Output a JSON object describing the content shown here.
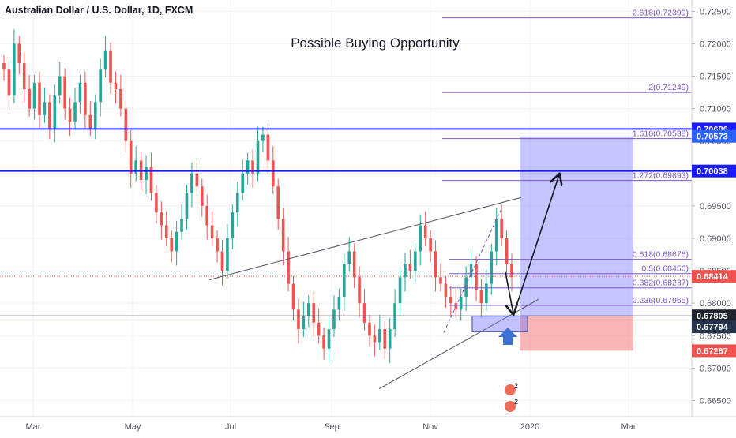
{
  "header": {
    "symbol_title": "Australian Dollar / U.S. Dollar, 1D, FXCM",
    "headline": "Possible Buying Opportunity"
  },
  "chart_data": {
    "type": "candlestick",
    "symbol": "Australian Dollar / U.S. Dollar",
    "interval": "1D",
    "source": "FXCM",
    "title": "Possible Buying Opportunity",
    "x_ticks": [
      "Mar",
      "May",
      "Jul",
      "Sep",
      "Nov",
      "2020",
      "Mar"
    ],
    "y_ticks": [
      "0.72500",
      "0.72000",
      "0.71500",
      "0.71000",
      "0.70500",
      "0.70000",
      "0.69500",
      "0.69000",
      "0.68500",
      "0.68000",
      "0.67500",
      "0.67000",
      "0.66500"
    ],
    "ylim": [
      0.6625,
      0.7265
    ],
    "price_tags": [
      {
        "label": "0.70686",
        "value": 0.70686,
        "color": "#1a1aff"
      },
      {
        "label": "0.70573",
        "value": 0.70573,
        "color": "#2962ff"
      },
      {
        "label": "0.70038",
        "value": 0.70038,
        "color": "#1a1aff"
      },
      {
        "label": "0.68414",
        "value": 0.68414,
        "color": "#ef5350"
      },
      {
        "label": "0.67805",
        "value": 0.67805,
        "color": "#1e222d"
      },
      {
        "label": "0.67794",
        "value": 0.67794,
        "color": "#26334d"
      },
      {
        "label": "0.67267",
        "value": 0.67267,
        "color": "#ef5350"
      }
    ],
    "fibonacci": [
      {
        "label": "2.618(0.72399)",
        "value": 0.72399
      },
      {
        "label": "2(0.71249)",
        "value": 0.71249
      },
      {
        "label": "1.618(0.70538)",
        "value": 0.70538
      },
      {
        "label": "1.272(0.69893)",
        "value": 0.69893
      },
      {
        "label": "0.618(0.68676)",
        "value": 0.68676
      },
      {
        "label": "0.5(0.68456)",
        "value": 0.68456
      },
      {
        "label": "0.382(0.68237)",
        "value": 0.68237
      },
      {
        "label": "0.236(0.67965)",
        "value": 0.67965
      }
    ],
    "horizontal_levels": [
      0.70686,
      0.70038,
      0.67805
    ],
    "current_price": 0.68414,
    "long_position": {
      "entry": 0.67805,
      "target": 0.70573,
      "stop": 0.67267
    },
    "candles_approx": [
      0.716,
      0.712,
      0.72,
      0.717,
      0.713,
      0.71,
      0.714,
      0.709,
      0.711,
      0.707,
      0.712,
      0.715,
      0.71,
      0.708,
      0.711,
      0.714,
      0.709,
      0.707,
      0.711,
      0.716,
      0.719,
      0.714,
      0.713,
      0.71,
      0.705,
      0.7,
      0.702,
      0.699,
      0.701,
      0.697,
      0.694,
      0.692,
      0.69,
      0.688,
      0.691,
      0.693,
      0.697,
      0.7,
      0.698,
      0.695,
      0.692,
      0.69,
      0.688,
      0.685,
      0.69,
      0.694,
      0.697,
      0.7,
      0.702,
      0.7,
      0.705,
      0.706,
      0.702,
      0.698,
      0.693,
      0.688,
      0.683,
      0.679,
      0.676,
      0.678,
      0.68,
      0.677,
      0.675,
      0.673,
      0.676,
      0.679,
      0.681,
      0.686,
      0.688,
      0.684,
      0.68,
      0.677,
      0.675,
      0.674,
      0.676,
      0.673,
      0.676,
      0.68,
      0.684,
      0.686,
      0.685,
      0.688,
      0.692,
      0.69,
      0.688,
      0.684,
      0.683,
      0.681,
      0.68,
      0.679,
      0.681,
      0.684,
      0.686,
      0.682,
      0.68,
      0.683,
      0.688,
      0.693,
      0.69,
      0.686,
      0.684
    ]
  }
}
